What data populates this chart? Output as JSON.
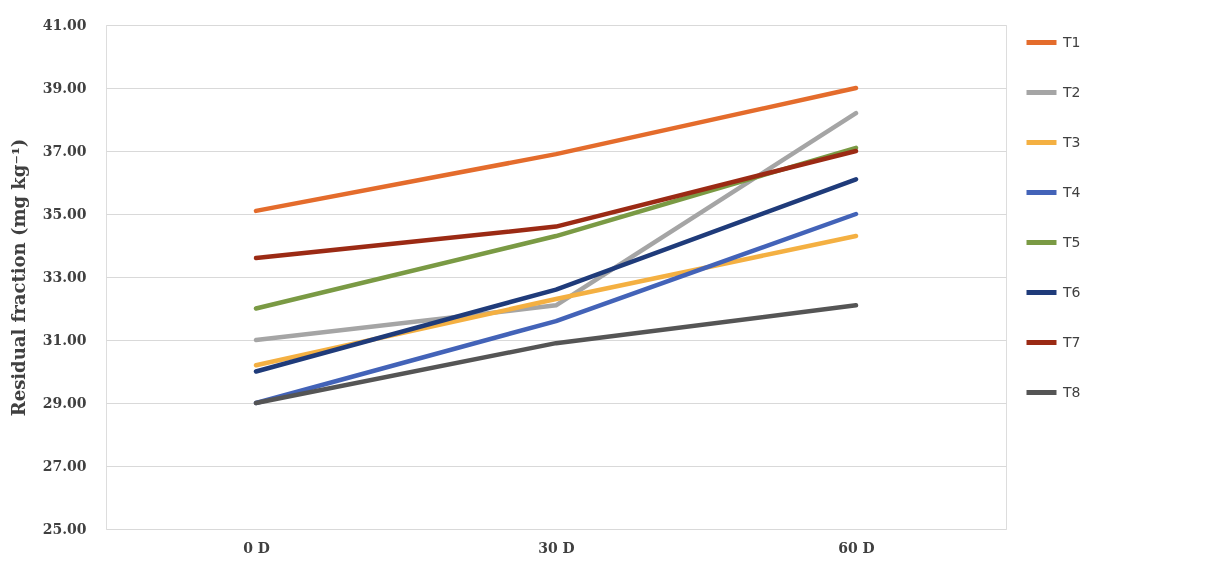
{
  "chart_data": {
    "type": "line",
    "ylabel": "Residual fraction (mg kg⁻¹)",
    "categories": [
      "0 D",
      "30 D",
      "60 D"
    ],
    "ylim": [
      25,
      41
    ],
    "yticks": [
      {
        "value": 25,
        "label": "25.00"
      },
      {
        "value": 27,
        "label": "27.00"
      },
      {
        "value": 29,
        "label": "29.00"
      },
      {
        "value": 31,
        "label": "31.00"
      },
      {
        "value": 33,
        "label": "33.00"
      },
      {
        "value": 35,
        "label": "35.00"
      },
      {
        "value": 37,
        "label": "37.00"
      },
      {
        "value": 39,
        "label": "39.00"
      },
      {
        "value": 41,
        "label": "41.00"
      }
    ],
    "grid": "y",
    "legend": "right",
    "marker": "none",
    "line_style": "solid",
    "series": [
      {
        "name": "T1",
        "color": "#e46c2c",
        "values": [
          35.1,
          36.9,
          39.0
        ]
      },
      {
        "name": "T2",
        "color": "#a5a5a5",
        "values": [
          31.0,
          32.1,
          38.2
        ]
      },
      {
        "name": "T3",
        "color": "#f4b042",
        "values": [
          30.2,
          32.3,
          34.3
        ]
      },
      {
        "name": "T4",
        "color": "#4363b8",
        "values": [
          29.0,
          31.6,
          35.0
        ]
      },
      {
        "name": "T5",
        "color": "#7a9a44",
        "values": [
          32.0,
          34.3,
          37.1
        ]
      },
      {
        "name": "T6",
        "color": "#1f3b7a",
        "values": [
          30.0,
          32.6,
          36.1
        ]
      },
      {
        "name": "T7",
        "color": "#9b2a14",
        "values": [
          33.6,
          34.6,
          37.0
        ]
      },
      {
        "name": "T8",
        "color": "#555555",
        "values": [
          29.0,
          30.9,
          32.1
        ]
      }
    ]
  }
}
